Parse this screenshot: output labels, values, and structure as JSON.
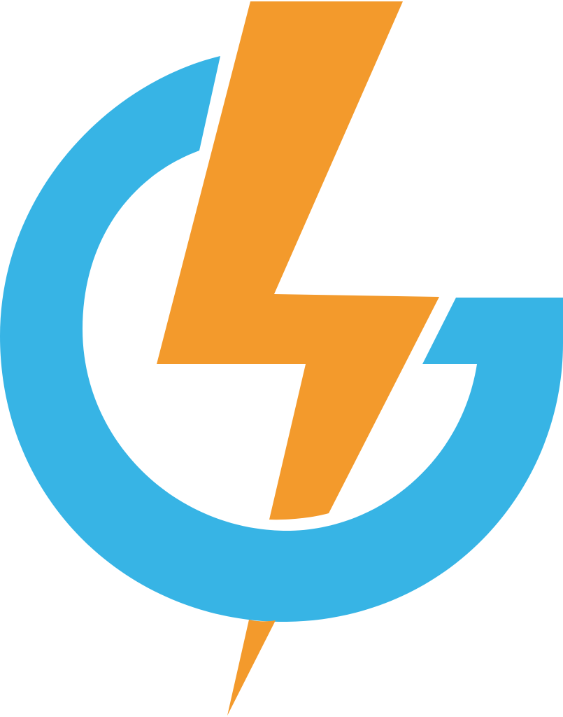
{
  "logo": {
    "icon": "lightning-g-logo",
    "colors": {
      "ring": "#37B4E5",
      "bolt": "#F39A2C",
      "background": "#FFFFFF"
    }
  }
}
